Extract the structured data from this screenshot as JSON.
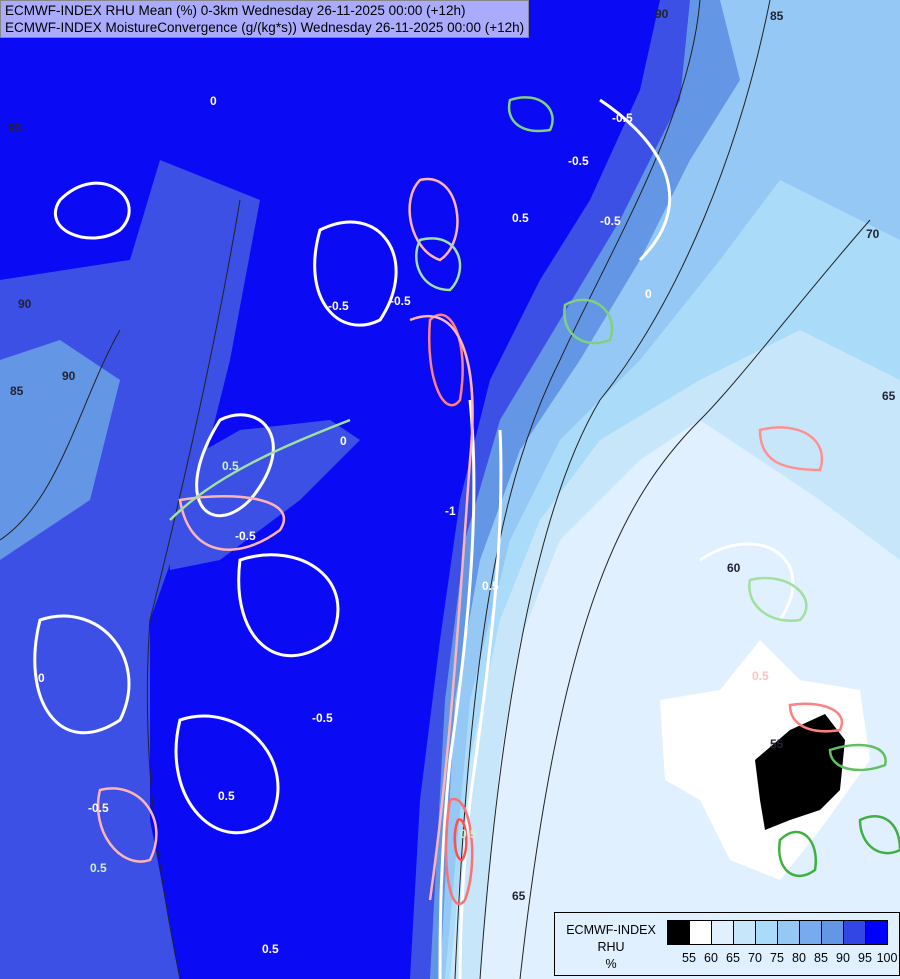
{
  "title": {
    "line1": "ECMWF-INDEX RHU Mean (%) 0-3km Wednesday 26-11-2025 00:00 (+12h)",
    "line2": "ECMWF-INDEX MoistureConvergence (g/(kg*s)) Wednesday 26-11-2025 00:00 (+12h)"
  },
  "legend": {
    "title_line1": "ECMWF-INDEX",
    "title_line2": "RHU",
    "unit": "%",
    "colors": [
      "#000000",
      "#ffffff",
      "#e0f0ff",
      "#c8e6fa",
      "#aadcfa",
      "#96c8f5",
      "#78aaf0",
      "#6496e6",
      "#3246e6",
      "#0000ff"
    ],
    "ticks": [
      "55",
      "60",
      "65",
      "70",
      "75",
      "80",
      "85",
      "90",
      "95",
      "100"
    ]
  },
  "contour_labels": {
    "rhu": [
      "95",
      "90",
      "85",
      "85",
      "90",
      "70",
      "65",
      "65",
      "60",
      "55",
      "90"
    ],
    "convergence": [
      "0",
      "0",
      "0",
      "-0.5",
      "-0.5",
      "-0.5",
      "-0.5",
      "0.5",
      "-0.5",
      "-0.5",
      "0.5",
      "0.5",
      "0.5",
      "-1",
      "0.5",
      "0.5",
      "-0.5",
      "0.5",
      "-0.5",
      "0.5",
      "0"
    ]
  }
}
